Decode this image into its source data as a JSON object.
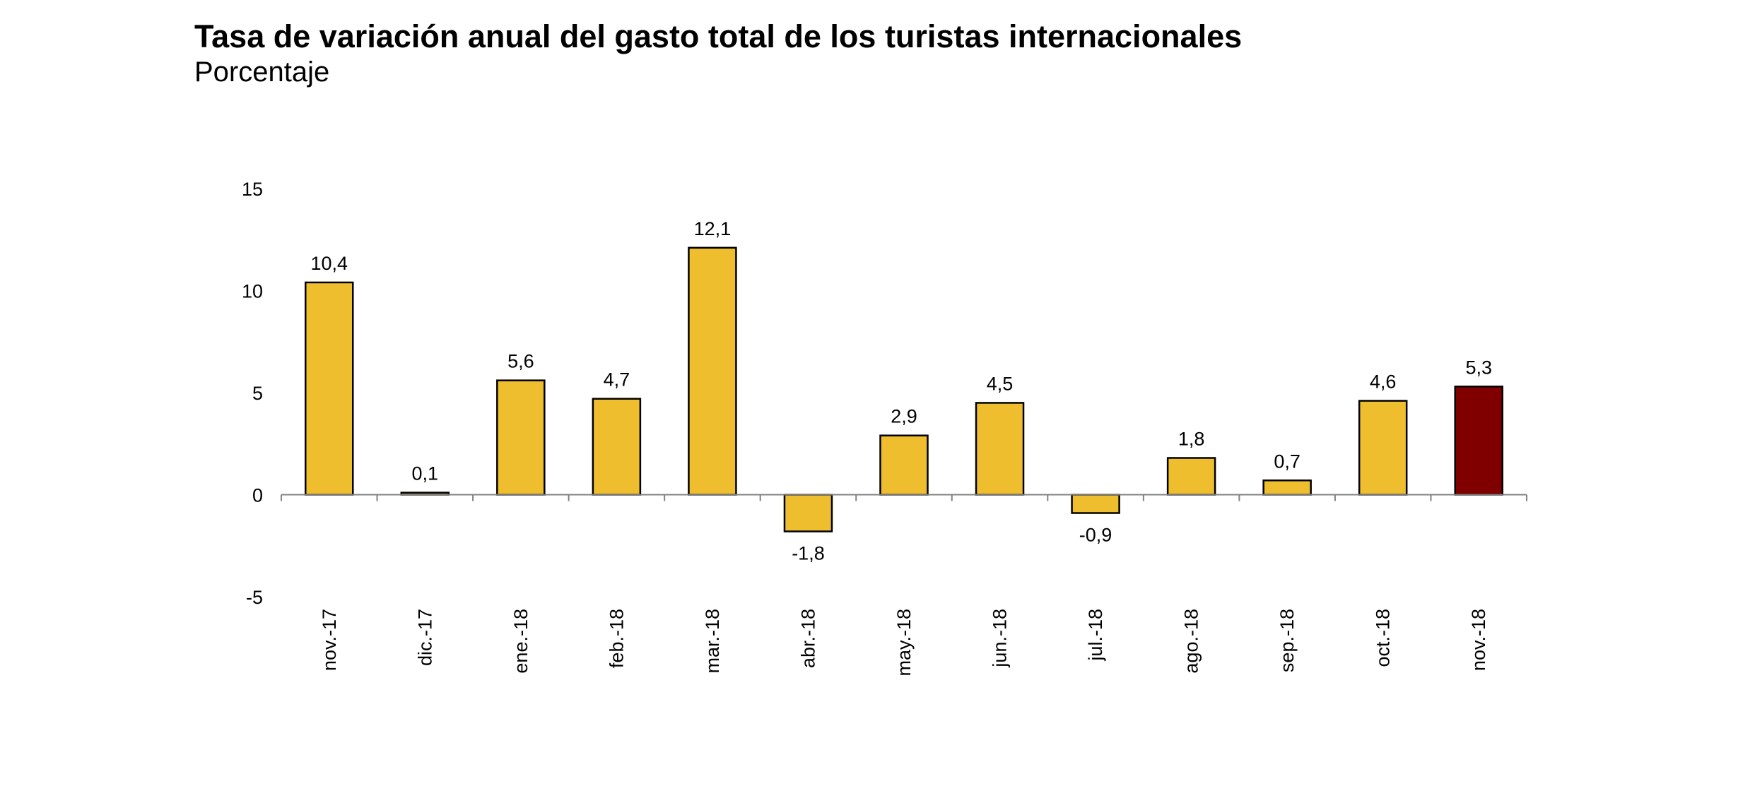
{
  "chart_data": {
    "type": "bar",
    "title": "Tasa de variación anual del gasto total de los turistas internacionales",
    "subtitle": "Porcentaje",
    "xlabel": "",
    "ylabel": "",
    "categories": [
      "nov.-17",
      "dic.-17",
      "ene.-18",
      "feb.-18",
      "mar.-18",
      "abr.-18",
      "may.-18",
      "jun.-18",
      "jul.-18",
      "ago.-18",
      "sep.-18",
      "oct.-18",
      "nov.-18"
    ],
    "values": [
      10.4,
      0.1,
      5.6,
      4.7,
      12.1,
      -1.8,
      2.9,
      4.5,
      -0.9,
      1.8,
      0.7,
      4.6,
      5.3
    ],
    "value_labels": [
      "10,4",
      "0,1",
      "5,6",
      "4,7",
      "12,1",
      "-1,8",
      "2,9",
      "4,5",
      "-0,9",
      "1,8",
      "0,7",
      "4,6",
      "5,3"
    ],
    "ylim": [
      -5,
      15
    ],
    "yticks": [
      -5,
      0,
      5,
      10,
      15
    ],
    "ytick_labels": [
      "-5",
      "0",
      "5",
      "10",
      "15"
    ],
    "grid": false,
    "legend": "none",
    "colors": {
      "bar": "#EFBE2F",
      "highlight_bar": "#800000",
      "bar_edge": "#000000",
      "axis": "#808080"
    },
    "highlight_index": 12
  }
}
